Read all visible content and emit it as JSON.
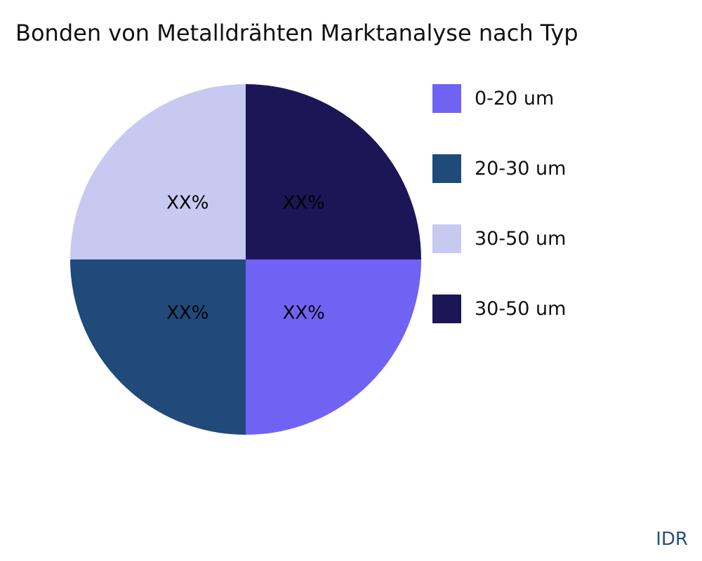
{
  "chart_data": {
    "type": "pie",
    "title": "Bonden von Metalldrähten Marktanalyse nach Typ",
    "slices": [
      {
        "label": "0-20 um",
        "value": 25,
        "display": "XX%",
        "color": "#7063F3"
      },
      {
        "label": "20-30 um",
        "value": 25,
        "display": "XX%",
        "color": "#1F4A7A"
      },
      {
        "label": "30-50 um",
        "value": 25,
        "display": "XX%",
        "color": "#C8C9F0"
      },
      {
        "label": "30-50 um",
        "value": 25,
        "display": "XX%",
        "color": "#1C1656"
      }
    ],
    "direction": "clockwise",
    "legend_position": "right"
  },
  "watermark": "IDR"
}
